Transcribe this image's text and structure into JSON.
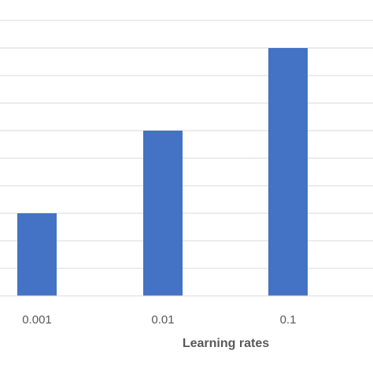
{
  "chart_data": {
    "type": "bar",
    "title": "",
    "xlabel": "Learning rates",
    "ylabel": "",
    "categories": [
      "0.001",
      "0.01",
      "0.1"
    ],
    "values": [
      3,
      6,
      9
    ],
    "ylim": [
      0,
      10.5
    ],
    "grid": true,
    "legend": "none",
    "bar_color": "#4472C4",
    "grid_color": "#D9D9D9"
  }
}
